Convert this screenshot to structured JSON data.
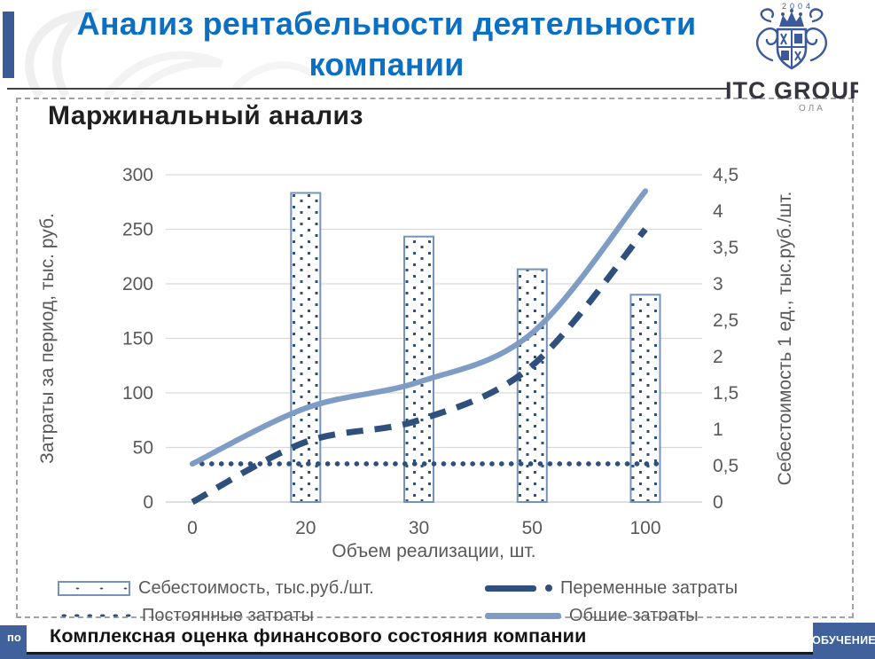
{
  "header": {
    "title_line1": "Анализ рентабельности деятельности",
    "title_line2": "компании"
  },
  "logo": {
    "year": "2004",
    "name": "ITC GROUP",
    "tagline_fragment": "ОЛА"
  },
  "chart_data": {
    "type": "combo (bar + line)",
    "title": "Маржинальный анализ",
    "categories": [
      "0",
      "20",
      "30",
      "50",
      "100"
    ],
    "xlabel": "Объем реализации, шт.",
    "axes": {
      "left": {
        "label": "Затраты за период, тыс. руб.",
        "min": 0,
        "max": 300,
        "ticks": [
          "0",
          "50",
          "100",
          "150",
          "200",
          "250",
          "300"
        ]
      },
      "right": {
        "label": "Себестоимость 1 ед., тыс.руб./шт.",
        "min": 0,
        "max": 4.5,
        "ticks": [
          "0",
          "0,5",
          "1",
          "1,5",
          "2",
          "2,5",
          "3",
          "3,5",
          "4",
          "4,5"
        ]
      }
    },
    "series": [
      {
        "name": "Себестоимость, тыс.руб./шт.",
        "type": "bar",
        "axis": "right",
        "style": "dotted-pattern",
        "values": [
          null,
          4.25,
          3.65,
          3.2,
          2.85
        ]
      },
      {
        "name": "Переменные затраты",
        "type": "line",
        "axis": "left",
        "style": "dashed",
        "values": [
          0,
          55,
          75,
          125,
          250
        ]
      },
      {
        "name": "Постоянные затраты",
        "type": "line",
        "axis": "left",
        "style": "dotted",
        "values": [
          35,
          35,
          35,
          35,
          35
        ]
      },
      {
        "name": "Общие затраты",
        "type": "line",
        "axis": "left",
        "style": "solid",
        "values": [
          35,
          86,
          110,
          155,
          285
        ]
      }
    ],
    "grid": true,
    "legend_position": "bottom, two columns"
  },
  "footer": {
    "left_fragment": "по",
    "caption": "Комплексная оценка финансового состояния компании",
    "right_label": "ОБУЧЕНИЕ"
  },
  "colors": {
    "title_blue": "#0b6fc4",
    "navy_line": "#2f4f7d",
    "light_blue_line": "#7f9cc5",
    "bar_border": "#7494bf",
    "footer_blue": "#40619c",
    "axis_text": "#595959",
    "gridline": "#d9d9d9",
    "logo_navy": "#3a5a9c"
  }
}
